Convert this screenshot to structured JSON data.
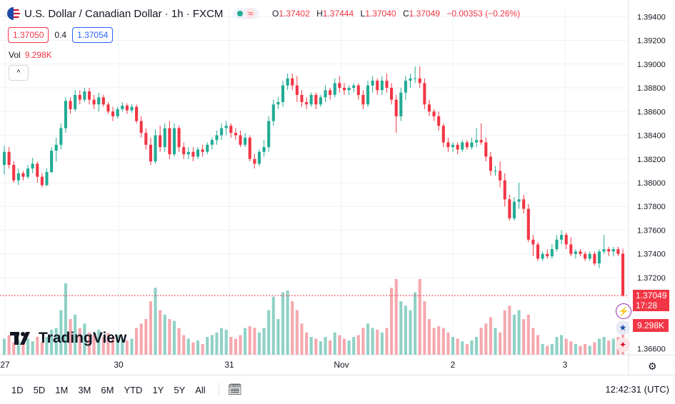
{
  "header": {
    "title": "U.S. Dollar / Canadian Dollar · 1h · FXCM",
    "wave_icon": "≈",
    "o_lbl": "O",
    "o": "1.37402",
    "h_lbl": "H",
    "h": "1.37444",
    "l_lbl": "L",
    "l": "1.37040",
    "c_lbl": "C",
    "c": "1.37049",
    "change": "−0.00353 (−0.26%)"
  },
  "quote": {
    "sell": "1.37050",
    "spread": "0.4",
    "buy": "1.37054"
  },
  "volume": {
    "label": "Vol",
    "value": "9.298K"
  },
  "collapse_icon": "^",
  "logo": {
    "text": "TradingView"
  },
  "price_tag": {
    "price": "1.37049",
    "countdown": "17:28"
  },
  "volume_tag": "9.298K",
  "bottom_bar": {
    "ranges": [
      "1D",
      "5D",
      "1M",
      "3M",
      "6M",
      "YTD",
      "1Y",
      "5Y",
      "All"
    ],
    "calendar_icon": "🗓",
    "clock": "12:42:31 (UTC)"
  },
  "colors": {
    "up": "#22ab94",
    "down": "#f23645",
    "up_vol": "#8fd1c6",
    "down_vol": "#f5a8ae",
    "grid": "#eef1f5"
  },
  "chart_data": {
    "type": "candlestick",
    "title": "U.S. Dollar / Canadian Dollar · 1h · FXCM",
    "y_ticks": [
      "1.39400",
      "1.39200",
      "1.39000",
      "1.38800",
      "1.38600",
      "1.38400",
      "1.38200",
      "1.38000",
      "1.37800",
      "1.37600",
      "1.37400",
      "1.37200",
      "1.36600"
    ],
    "x_ticks": [
      "27",
      "30",
      "31",
      "Nov",
      "2",
      "3"
    ],
    "ylim": [
      1.3655,
      1.3945
    ],
    "last_price": 1.37049,
    "candles": [
      {
        "o": 1.3815,
        "h": 1.3831,
        "l": 1.3807,
        "c": 1.3826,
        "v": 0.18
      },
      {
        "o": 1.3826,
        "h": 1.383,
        "l": 1.3812,
        "c": 1.3815,
        "v": 0.22
      },
      {
        "o": 1.3815,
        "h": 1.3818,
        "l": 1.38,
        "c": 1.3802,
        "v": 0.14
      },
      {
        "o": 1.3802,
        "h": 1.3812,
        "l": 1.3798,
        "c": 1.3808,
        "v": 0.16
      },
      {
        "o": 1.3808,
        "h": 1.381,
        "l": 1.3802,
        "c": 1.3805,
        "v": 0.12
      },
      {
        "o": 1.3805,
        "h": 1.3815,
        "l": 1.3803,
        "c": 1.3812,
        "v": 0.18
      },
      {
        "o": 1.3812,
        "h": 1.3821,
        "l": 1.3808,
        "c": 1.3816,
        "v": 0.15
      },
      {
        "o": 1.3816,
        "h": 1.3818,
        "l": 1.38,
        "c": 1.3805,
        "v": 0.2
      },
      {
        "o": 1.3805,
        "h": 1.3808,
        "l": 1.3796,
        "c": 1.3798,
        "v": 0.14
      },
      {
        "o": 1.3798,
        "h": 1.3812,
        "l": 1.3797,
        "c": 1.3809,
        "v": 0.2
      },
      {
        "o": 1.3809,
        "h": 1.383,
        "l": 1.3808,
        "c": 1.3827,
        "v": 0.28
      },
      {
        "o": 1.3827,
        "h": 1.3838,
        "l": 1.3818,
        "c": 1.3832,
        "v": 0.3
      },
      {
        "o": 1.3832,
        "h": 1.385,
        "l": 1.3828,
        "c": 1.3846,
        "v": 0.5
      },
      {
        "o": 1.3846,
        "h": 1.3872,
        "l": 1.3842,
        "c": 1.3869,
        "v": 0.8
      },
      {
        "o": 1.3869,
        "h": 1.3872,
        "l": 1.3858,
        "c": 1.3862,
        "v": 0.4
      },
      {
        "o": 1.3862,
        "h": 1.3878,
        "l": 1.386,
        "c": 1.3874,
        "v": 0.45
      },
      {
        "o": 1.3874,
        "h": 1.3878,
        "l": 1.3866,
        "c": 1.387,
        "v": 0.3
      },
      {
        "o": 1.387,
        "h": 1.388,
        "l": 1.3868,
        "c": 1.3877,
        "v": 0.35
      },
      {
        "o": 1.3877,
        "h": 1.388,
        "l": 1.3866,
        "c": 1.387,
        "v": 0.25
      },
      {
        "o": 1.387,
        "h": 1.3874,
        "l": 1.3862,
        "c": 1.3866,
        "v": 0.22
      },
      {
        "o": 1.3866,
        "h": 1.3876,
        "l": 1.386,
        "c": 1.3872,
        "v": 0.28
      },
      {
        "o": 1.3872,
        "h": 1.3874,
        "l": 1.3864,
        "c": 1.3866,
        "v": 0.2
      },
      {
        "o": 1.3866,
        "h": 1.3868,
        "l": 1.3858,
        "c": 1.386,
        "v": 0.24
      },
      {
        "o": 1.386,
        "h": 1.3864,
        "l": 1.3852,
        "c": 1.3856,
        "v": 0.2
      },
      {
        "o": 1.3856,
        "h": 1.3864,
        "l": 1.3854,
        "c": 1.3862,
        "v": 0.22
      },
      {
        "o": 1.3862,
        "h": 1.3868,
        "l": 1.386,
        "c": 1.3865,
        "v": 0.18
      },
      {
        "o": 1.3865,
        "h": 1.3867,
        "l": 1.3858,
        "c": 1.3861,
        "v": 0.16
      },
      {
        "o": 1.3861,
        "h": 1.3866,
        "l": 1.3859,
        "c": 1.3864,
        "v": 0.18
      },
      {
        "o": 1.3864,
        "h": 1.3866,
        "l": 1.385,
        "c": 1.3852,
        "v": 0.3
      },
      {
        "o": 1.3852,
        "h": 1.3856,
        "l": 1.3838,
        "c": 1.3842,
        "v": 0.35
      },
      {
        "o": 1.3842,
        "h": 1.3846,
        "l": 1.3828,
        "c": 1.3832,
        "v": 0.4
      },
      {
        "o": 1.3832,
        "h": 1.3838,
        "l": 1.3815,
        "c": 1.3818,
        "v": 0.6
      },
      {
        "o": 1.3818,
        "h": 1.3845,
        "l": 1.3816,
        "c": 1.384,
        "v": 0.75
      },
      {
        "o": 1.384,
        "h": 1.3848,
        "l": 1.3826,
        "c": 1.383,
        "v": 0.5
      },
      {
        "o": 1.383,
        "h": 1.385,
        "l": 1.3826,
        "c": 1.3846,
        "v": 0.45
      },
      {
        "o": 1.3846,
        "h": 1.3852,
        "l": 1.382,
        "c": 1.3824,
        "v": 0.4
      },
      {
        "o": 1.3824,
        "h": 1.385,
        "l": 1.3822,
        "c": 1.3846,
        "v": 0.38
      },
      {
        "o": 1.3846,
        "h": 1.3848,
        "l": 1.3826,
        "c": 1.383,
        "v": 0.3
      },
      {
        "o": 1.383,
        "h": 1.3834,
        "l": 1.382,
        "c": 1.3824,
        "v": 0.22
      },
      {
        "o": 1.3824,
        "h": 1.383,
        "l": 1.382,
        "c": 1.3826,
        "v": 0.18
      },
      {
        "o": 1.3826,
        "h": 1.383,
        "l": 1.3818,
        "c": 1.3822,
        "v": 0.14
      },
      {
        "o": 1.3822,
        "h": 1.383,
        "l": 1.382,
        "c": 1.3828,
        "v": 0.16
      },
      {
        "o": 1.3828,
        "h": 1.3832,
        "l": 1.3822,
        "c": 1.3826,
        "v": 0.12
      },
      {
        "o": 1.3826,
        "h": 1.3834,
        "l": 1.3824,
        "c": 1.3832,
        "v": 0.2
      },
      {
        "o": 1.3832,
        "h": 1.3838,
        "l": 1.3828,
        "c": 1.3836,
        "v": 0.22
      },
      {
        "o": 1.3836,
        "h": 1.3844,
        "l": 1.3832,
        "c": 1.384,
        "v": 0.25
      },
      {
        "o": 1.384,
        "h": 1.385,
        "l": 1.3836,
        "c": 1.3846,
        "v": 0.3
      },
      {
        "o": 1.3846,
        "h": 1.3852,
        "l": 1.384,
        "c": 1.3848,
        "v": 0.28
      },
      {
        "o": 1.3848,
        "h": 1.385,
        "l": 1.3838,
        "c": 1.3842,
        "v": 0.2
      },
      {
        "o": 1.3842,
        "h": 1.3846,
        "l": 1.3836,
        "c": 1.384,
        "v": 0.18
      },
      {
        "o": 1.384,
        "h": 1.3844,
        "l": 1.383,
        "c": 1.3832,
        "v": 0.22
      },
      {
        "o": 1.3832,
        "h": 1.3842,
        "l": 1.383,
        "c": 1.3838,
        "v": 0.3
      },
      {
        "o": 1.3838,
        "h": 1.384,
        "l": 1.3818,
        "c": 1.382,
        "v": 0.32
      },
      {
        "o": 1.382,
        "h": 1.3824,
        "l": 1.3812,
        "c": 1.3816,
        "v": 0.3
      },
      {
        "o": 1.3816,
        "h": 1.3828,
        "l": 1.3814,
        "c": 1.3826,
        "v": 0.25
      },
      {
        "o": 1.3826,
        "h": 1.3836,
        "l": 1.3822,
        "c": 1.383,
        "v": 0.3
      },
      {
        "o": 1.383,
        "h": 1.3856,
        "l": 1.3826,
        "c": 1.3852,
        "v": 0.5
      },
      {
        "o": 1.3852,
        "h": 1.387,
        "l": 1.3848,
        "c": 1.3866,
        "v": 0.65
      },
      {
        "o": 1.3866,
        "h": 1.3872,
        "l": 1.3862,
        "c": 1.3868,
        "v": 0.4
      },
      {
        "o": 1.3868,
        "h": 1.3886,
        "l": 1.3864,
        "c": 1.3882,
        "v": 0.7
      },
      {
        "o": 1.3882,
        "h": 1.3892,
        "l": 1.3878,
        "c": 1.3888,
        "v": 0.72
      },
      {
        "o": 1.3888,
        "h": 1.3892,
        "l": 1.3878,
        "c": 1.3882,
        "v": 0.6
      },
      {
        "o": 1.3882,
        "h": 1.389,
        "l": 1.3868,
        "c": 1.3874,
        "v": 0.5
      },
      {
        "o": 1.3874,
        "h": 1.3878,
        "l": 1.3864,
        "c": 1.3868,
        "v": 0.35
      },
      {
        "o": 1.3868,
        "h": 1.3872,
        "l": 1.3862,
        "c": 1.3866,
        "v": 0.25
      },
      {
        "o": 1.3866,
        "h": 1.3876,
        "l": 1.3864,
        "c": 1.3874,
        "v": 0.2
      },
      {
        "o": 1.3874,
        "h": 1.3876,
        "l": 1.3862,
        "c": 1.3866,
        "v": 0.18
      },
      {
        "o": 1.3866,
        "h": 1.3874,
        "l": 1.3864,
        "c": 1.3872,
        "v": 0.15
      },
      {
        "o": 1.3872,
        "h": 1.3882,
        "l": 1.3868,
        "c": 1.3878,
        "v": 0.2
      },
      {
        "o": 1.3878,
        "h": 1.388,
        "l": 1.387,
        "c": 1.3874,
        "v": 0.16
      },
      {
        "o": 1.3874,
        "h": 1.3888,
        "l": 1.3872,
        "c": 1.3884,
        "v": 0.25
      },
      {
        "o": 1.3884,
        "h": 1.389,
        "l": 1.3876,
        "c": 1.388,
        "v": 0.22
      },
      {
        "o": 1.388,
        "h": 1.3884,
        "l": 1.3874,
        "c": 1.3878,
        "v": 0.18
      },
      {
        "o": 1.3878,
        "h": 1.3882,
        "l": 1.3874,
        "c": 1.388,
        "v": 0.16
      },
      {
        "o": 1.388,
        "h": 1.3884,
        "l": 1.3876,
        "c": 1.3882,
        "v": 0.2
      },
      {
        "o": 1.3882,
        "h": 1.3884,
        "l": 1.387,
        "c": 1.3874,
        "v": 0.22
      },
      {
        "o": 1.3874,
        "h": 1.3878,
        "l": 1.3862,
        "c": 1.3866,
        "v": 0.3
      },
      {
        "o": 1.3866,
        "h": 1.3886,
        "l": 1.3864,
        "c": 1.3882,
        "v": 0.35
      },
      {
        "o": 1.3882,
        "h": 1.389,
        "l": 1.3876,
        "c": 1.3886,
        "v": 0.3
      },
      {
        "o": 1.3886,
        "h": 1.3888,
        "l": 1.3874,
        "c": 1.3878,
        "v": 0.28
      },
      {
        "o": 1.3878,
        "h": 1.389,
        "l": 1.3874,
        "c": 1.3886,
        "v": 0.25
      },
      {
        "o": 1.3886,
        "h": 1.3892,
        "l": 1.3876,
        "c": 1.388,
        "v": 0.3
      },
      {
        "o": 1.388,
        "h": 1.3884,
        "l": 1.3866,
        "c": 1.387,
        "v": 0.75
      },
      {
        "o": 1.387,
        "h": 1.3874,
        "l": 1.3842,
        "c": 1.3856,
        "v": 0.85
      },
      {
        "o": 1.3856,
        "h": 1.388,
        "l": 1.3852,
        "c": 1.3876,
        "v": 0.6
      },
      {
        "o": 1.3876,
        "h": 1.389,
        "l": 1.387,
        "c": 1.3886,
        "v": 0.55
      },
      {
        "o": 1.3886,
        "h": 1.3892,
        "l": 1.388,
        "c": 1.3888,
        "v": 0.5
      },
      {
        "o": 1.3888,
        "h": 1.3898,
        "l": 1.3884,
        "c": 1.3888,
        "v": 0.7
      },
      {
        "o": 1.3888,
        "h": 1.3898,
        "l": 1.388,
        "c": 1.3884,
        "v": 0.85
      },
      {
        "o": 1.3884,
        "h": 1.3888,
        "l": 1.3862,
        "c": 1.3866,
        "v": 0.6
      },
      {
        "o": 1.3866,
        "h": 1.387,
        "l": 1.3856,
        "c": 1.386,
        "v": 0.4
      },
      {
        "o": 1.386,
        "h": 1.3862,
        "l": 1.3852,
        "c": 1.3856,
        "v": 0.3
      },
      {
        "o": 1.3856,
        "h": 1.386,
        "l": 1.3844,
        "c": 1.3848,
        "v": 0.32
      },
      {
        "o": 1.3848,
        "h": 1.385,
        "l": 1.383,
        "c": 1.3834,
        "v": 0.3
      },
      {
        "o": 1.3834,
        "h": 1.3838,
        "l": 1.3826,
        "c": 1.383,
        "v": 0.25
      },
      {
        "o": 1.383,
        "h": 1.3834,
        "l": 1.3826,
        "c": 1.3832,
        "v": 0.2
      },
      {
        "o": 1.3832,
        "h": 1.3834,
        "l": 1.3824,
        "c": 1.3828,
        "v": 0.18
      },
      {
        "o": 1.3828,
        "h": 1.3836,
        "l": 1.3826,
        "c": 1.3834,
        "v": 0.15
      },
      {
        "o": 1.3834,
        "h": 1.3836,
        "l": 1.3828,
        "c": 1.383,
        "v": 0.12
      },
      {
        "o": 1.383,
        "h": 1.3838,
        "l": 1.3828,
        "c": 1.3834,
        "v": 0.16
      },
      {
        "o": 1.3834,
        "h": 1.3846,
        "l": 1.383,
        "c": 1.3836,
        "v": 0.2
      },
      {
        "o": 1.3836,
        "h": 1.385,
        "l": 1.3832,
        "c": 1.3834,
        "v": 0.3
      },
      {
        "o": 1.3834,
        "h": 1.3838,
        "l": 1.3818,
        "c": 1.3822,
        "v": 0.35
      },
      {
        "o": 1.3822,
        "h": 1.3826,
        "l": 1.3806,
        "c": 1.381,
        "v": 0.42
      },
      {
        "o": 1.381,
        "h": 1.3814,
        "l": 1.3806,
        "c": 1.381,
        "v": 0.3
      },
      {
        "o": 1.381,
        "h": 1.3818,
        "l": 1.3796,
        "c": 1.3802,
        "v": 0.25
      },
      {
        "o": 1.3802,
        "h": 1.3808,
        "l": 1.378,
        "c": 1.3786,
        "v": 0.5
      },
      {
        "o": 1.3786,
        "h": 1.379,
        "l": 1.3768,
        "c": 1.377,
        "v": 0.55
      },
      {
        "o": 1.377,
        "h": 1.3788,
        "l": 1.3768,
        "c": 1.3784,
        "v": 0.45
      },
      {
        "o": 1.3784,
        "h": 1.38,
        "l": 1.3778,
        "c": 1.3786,
        "v": 0.5
      },
      {
        "o": 1.3786,
        "h": 1.379,
        "l": 1.3774,
        "c": 1.3778,
        "v": 0.4
      },
      {
        "o": 1.3778,
        "h": 1.3782,
        "l": 1.375,
        "c": 1.3752,
        "v": 0.45
      },
      {
        "o": 1.3752,
        "h": 1.3756,
        "l": 1.3738,
        "c": 1.3748,
        "v": 0.3
      },
      {
        "o": 1.3748,
        "h": 1.375,
        "l": 1.3734,
        "c": 1.3736,
        "v": 0.22
      },
      {
        "o": 1.3736,
        "h": 1.3742,
        "l": 1.3734,
        "c": 1.374,
        "v": 0.12
      },
      {
        "o": 1.374,
        "h": 1.3744,
        "l": 1.3736,
        "c": 1.3738,
        "v": 0.1
      },
      {
        "o": 1.3738,
        "h": 1.3748,
        "l": 1.3736,
        "c": 1.3744,
        "v": 0.12
      },
      {
        "o": 1.3744,
        "h": 1.3756,
        "l": 1.3742,
        "c": 1.3752,
        "v": 0.2
      },
      {
        "o": 1.3752,
        "h": 1.376,
        "l": 1.3748,
        "c": 1.3756,
        "v": 0.22
      },
      {
        "o": 1.3756,
        "h": 1.3758,
        "l": 1.3744,
        "c": 1.3748,
        "v": 0.18
      },
      {
        "o": 1.3748,
        "h": 1.3754,
        "l": 1.3738,
        "c": 1.374,
        "v": 0.15
      },
      {
        "o": 1.374,
        "h": 1.3744,
        "l": 1.3736,
        "c": 1.3742,
        "v": 0.12
      },
      {
        "o": 1.3742,
        "h": 1.3744,
        "l": 1.3738,
        "c": 1.374,
        "v": 0.1
      },
      {
        "o": 1.374,
        "h": 1.3742,
        "l": 1.3734,
        "c": 1.3736,
        "v": 0.12
      },
      {
        "o": 1.3736,
        "h": 1.3742,
        "l": 1.3734,
        "c": 1.374,
        "v": 0.1
      },
      {
        "o": 1.374,
        "h": 1.3742,
        "l": 1.373,
        "c": 1.3732,
        "v": 0.14
      },
      {
        "o": 1.3732,
        "h": 1.3744,
        "l": 1.3728,
        "c": 1.3742,
        "v": 0.18
      },
      {
        "o": 1.3742,
        "h": 1.3756,
        "l": 1.374,
        "c": 1.3744,
        "v": 0.2
      },
      {
        "o": 1.3744,
        "h": 1.3746,
        "l": 1.3738,
        "c": 1.3742,
        "v": 0.16
      },
      {
        "o": 1.3742,
        "h": 1.3746,
        "l": 1.3738,
        "c": 1.3744,
        "v": 0.18
      },
      {
        "o": 1.3744,
        "h": 1.3746,
        "l": 1.3738,
        "c": 1.374,
        "v": 0.2
      },
      {
        "o": 1.37402,
        "h": 1.37444,
        "l": 1.3704,
        "c": 1.37049,
        "v": 0.3
      }
    ]
  }
}
